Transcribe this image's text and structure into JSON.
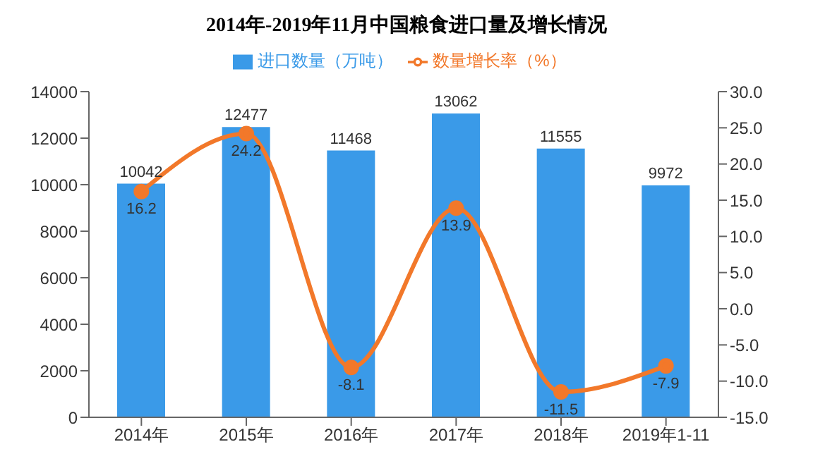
{
  "chart_data": {
    "type": "bar",
    "title": "2014年-2019年11月中国粮食进口量及增长情况",
    "categories": [
      "2014年",
      "2015年",
      "2016年",
      "2017年",
      "2018年",
      "2019年1-11"
    ],
    "series": [
      {
        "name": "进口数量（万吨）",
        "color": "#3a9ae8",
        "values": [
          10042,
          12477,
          11468,
          13062,
          11555,
          9972
        ]
      },
      {
        "name": "数量增长率（%）",
        "type": "line",
        "axis": "y2",
        "color": "#f2782a",
        "values": [
          16.2,
          24.2,
          -8.1,
          13.9,
          -11.5,
          -7.9
        ]
      }
    ],
    "ylim": [
      0,
      14000
    ],
    "yticks": [
      0,
      2000,
      4000,
      6000,
      8000,
      10000,
      12000,
      14000
    ],
    "y2lim": [
      -15,
      30
    ],
    "y2ticks": [
      {
        "value": 30,
        "label": "30.0"
      },
      {
        "value": 25,
        "label": "25.0"
      },
      {
        "value": 20,
        "label": "20.0"
      },
      {
        "value": 15,
        "label": "15.0"
      },
      {
        "value": 10,
        "label": "10.0"
      },
      {
        "value": 5,
        "label": "5.0"
      },
      {
        "value": 0,
        "label": "0.0"
      },
      {
        "value": -5,
        "label": "-5.0"
      },
      {
        "value": -10,
        "label": "-10.0"
      },
      {
        "value": -15,
        "label": "-15.0"
      }
    ],
    "data_labels": true,
    "legend": "top",
    "marker": "circle",
    "grid": false
  }
}
